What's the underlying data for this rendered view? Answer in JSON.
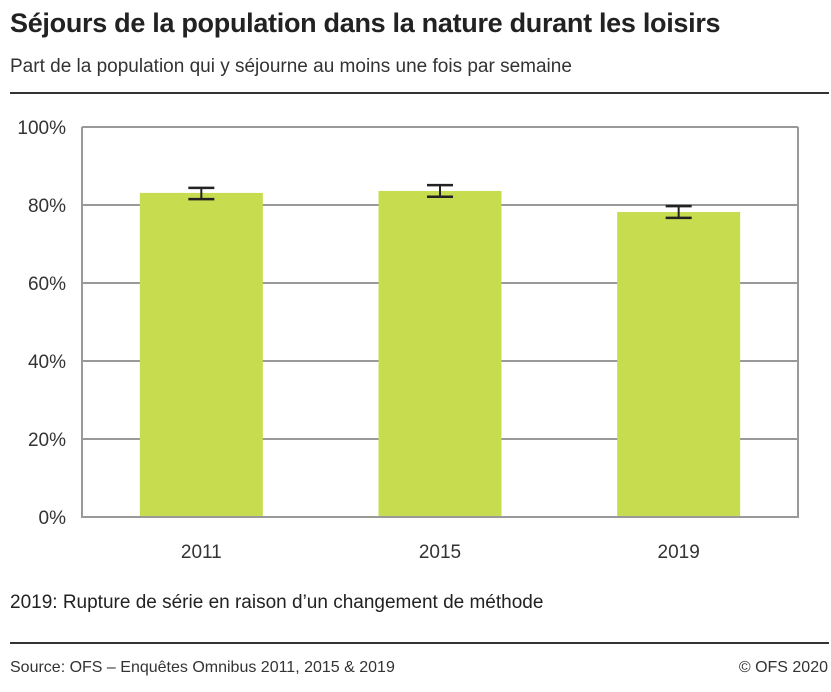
{
  "title": "Séjours de la population dans la nature durant les loisirs",
  "subtitle": "Part de la population qui y séjourne au moins une fois par semaine",
  "note": "2019: Rupture de série en raison d’un changement de méthode",
  "source": "Source: OFS – Enquêtes Omnibus 2011, 2015 & 2019",
  "copyright": "© OFS 2020",
  "chart_data": {
    "type": "bar",
    "title": "Séjours de la population dans la nature durant les loisirs",
    "subtitle": "Part de la population qui y séjourne au moins une fois par semaine",
    "categories": [
      "2011",
      "2015",
      "2019"
    ],
    "values": [
      83.1,
      83.6,
      78.2
    ],
    "error_low": [
      81.5,
      82.1,
      76.7
    ],
    "error_high": [
      84.4,
      85.1,
      79.7
    ],
    "ylim": [
      0,
      100
    ],
    "yticks": [
      0,
      20,
      40,
      60,
      80,
      100
    ],
    "ytick_labels": [
      "0%",
      "20%",
      "40%",
      "60%",
      "80%",
      "100%"
    ],
    "grid": true,
    "bar_color": "#c8dc50",
    "error_color": "#222222"
  }
}
